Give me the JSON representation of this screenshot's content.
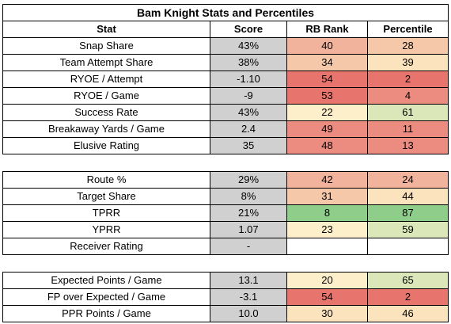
{
  "title": "Bam Knight Stats and Percentiles",
  "headers": {
    "stat": "Stat",
    "score": "Score",
    "rank": "RB Rank",
    "percentile": "Percentile"
  },
  "rows": [
    {
      "stat": "Snap Share",
      "score": "43%",
      "rank": "40",
      "percentile": "28"
    },
    {
      "stat": "Team Attempt Share",
      "score": "38%",
      "rank": "34",
      "percentile": "39"
    },
    {
      "stat": "RYOE / Attempt",
      "score": "-1.10",
      "rank": "54",
      "percentile": "2"
    },
    {
      "stat": "RYOE / Game",
      "score": "-9",
      "rank": "53",
      "percentile": "4"
    },
    {
      "stat": "Success Rate",
      "score": "43%",
      "rank": "22",
      "percentile": "61"
    },
    {
      "stat": "Breakaway Yards / Game",
      "score": "2.4",
      "rank": "49",
      "percentile": "11"
    },
    {
      "stat": "Elusive Rating",
      "score": "35",
      "rank": "48",
      "percentile": "13"
    },
    {
      "stat": "Route %",
      "score": "29%",
      "rank": "42",
      "percentile": "24"
    },
    {
      "stat": "Target Share",
      "score": "8%",
      "rank": "31",
      "percentile": "44"
    },
    {
      "stat": "TPRR",
      "score": "21%",
      "rank": "8",
      "percentile": "87"
    },
    {
      "stat": "YPRR",
      "score": "1.07",
      "rank": "23",
      "percentile": "59"
    },
    {
      "stat": "Receiver Rating",
      "score": "-",
      "rank": "",
      "percentile": ""
    },
    {
      "stat": "Expected Points / Game",
      "score": "13.1",
      "rank": "20",
      "percentile": "65"
    },
    {
      "stat": "FP over Expected / Game",
      "score": "-3.1",
      "rank": "54",
      "percentile": "2"
    },
    {
      "stat": "PPR Points / Game",
      "score": "10.0",
      "rank": "30",
      "percentile": "46"
    }
  ],
  "colors": {
    "score_fill": "#d0d0d0",
    "scale_low": "#e8756d",
    "scale_mid": "#fdf3cc",
    "scale_high": "#8fcd8b"
  }
}
